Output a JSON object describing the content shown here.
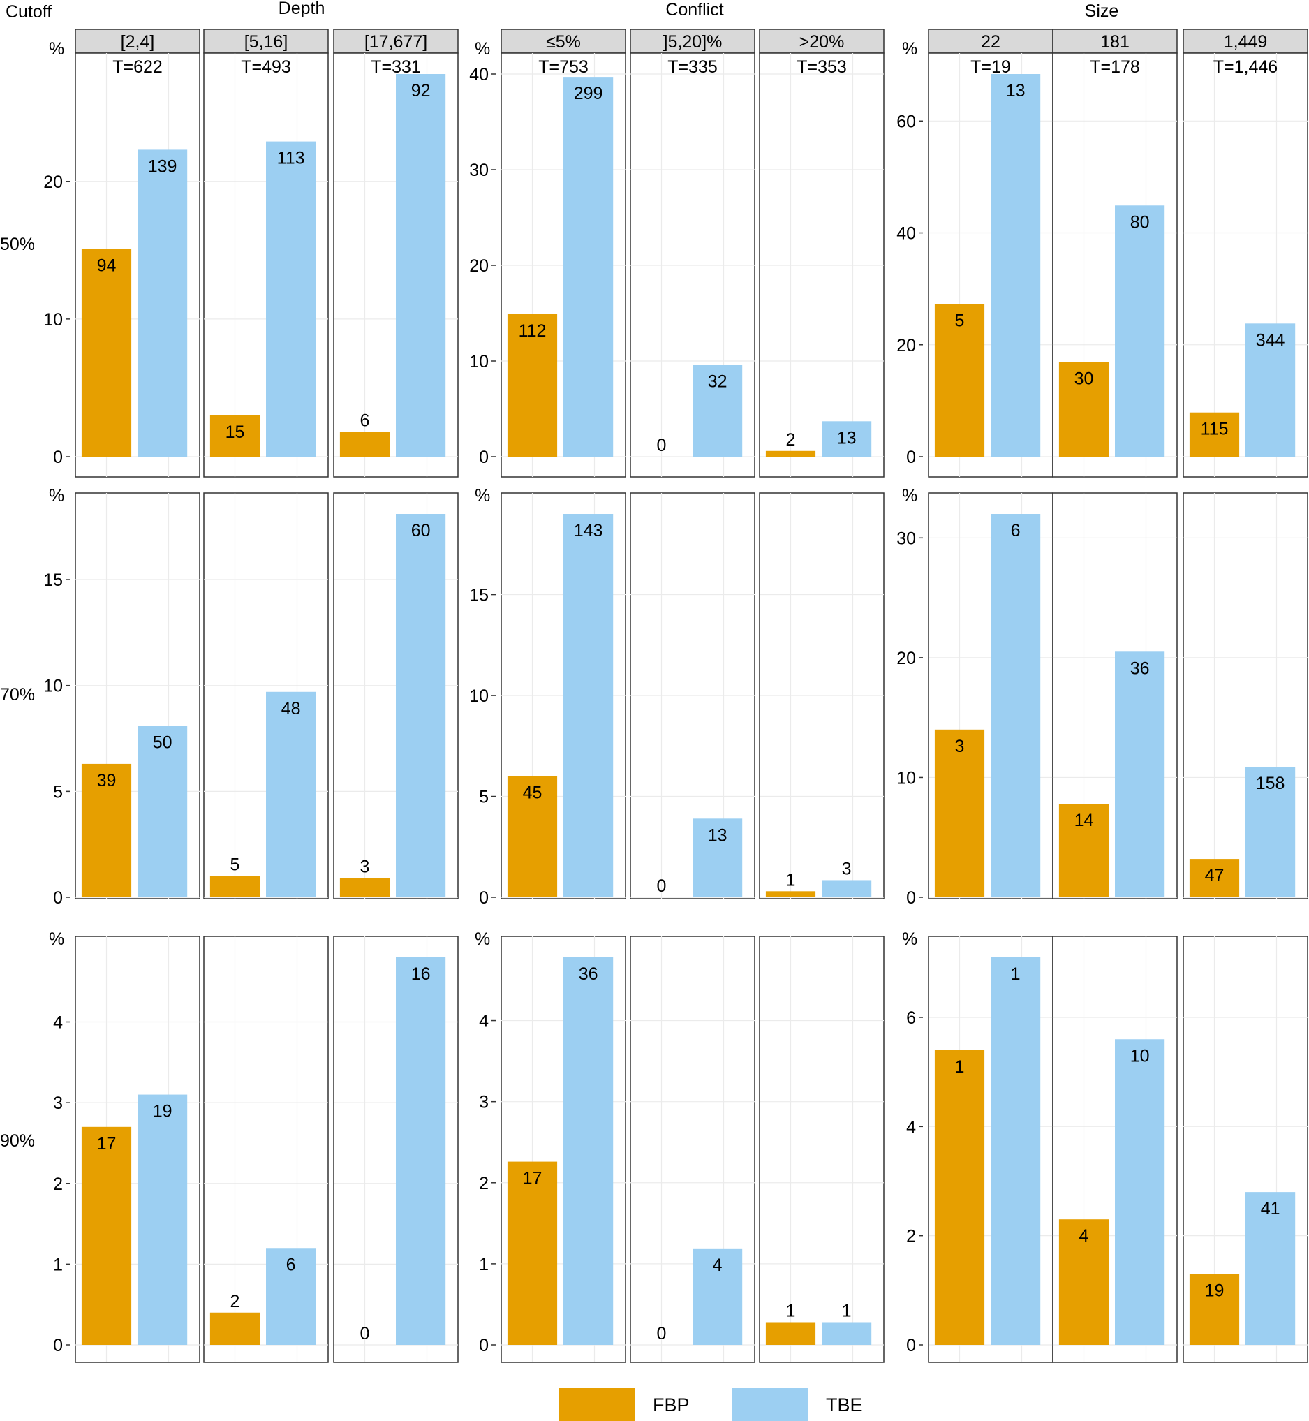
{
  "labels": {
    "cutoff": "Cutoff",
    "depth": "Depth",
    "conflict": "Conflict",
    "size": "Size",
    "percent": "%"
  },
  "legend": [
    {
      "name": "FBP",
      "color": "#E69F00"
    },
    {
      "name": "TBE",
      "color": "#9CCFF2"
    }
  ],
  "chart_data": {
    "type": "bar",
    "rows": [
      "50%",
      "70%",
      "90%"
    ],
    "series_names": [
      "FBP",
      "TBE"
    ],
    "groups": [
      {
        "title": "Depth",
        "panels": [
          "[2,4]",
          "[5,16]",
          "[17,677]"
        ],
        "totals": [
          "T=622",
          "T=493",
          "T=331"
        ],
        "ylim": [
          [
            0,
            27
          ],
          [
            0,
            17.5
          ],
          [
            0,
            4.8
          ]
        ],
        "ticks": [
          [
            0,
            10,
            20
          ],
          [
            0,
            5,
            10,
            15
          ],
          [
            0,
            1,
            2,
            3,
            4
          ]
        ],
        "values": [
          [
            [
              15.1,
              22.3
            ],
            [
              3.0,
              22.9
            ],
            [
              1.8,
              27.8
            ]
          ],
          [
            [
              6.3,
              8.1
            ],
            [
              1.0,
              9.7
            ],
            [
              0.9,
              18.1
            ]
          ],
          [
            [
              2.7,
              3.1
            ],
            [
              0.4,
              1.2
            ],
            [
              0,
              4.8
            ]
          ]
        ],
        "counts": [
          [
            [
              94,
              139
            ],
            [
              15,
              113
            ],
            [
              6,
              92
            ]
          ],
          [
            [
              39,
              50
            ],
            [
              5,
              48
            ],
            [
              3,
              60
            ]
          ],
          [
            [
              17,
              19
            ],
            [
              2,
              6
            ],
            [
              0,
              16
            ]
          ]
        ]
      },
      {
        "title": "Conflict",
        "panels": [
          "≤5%",
          "]5,20]%",
          ">20%"
        ],
        "totals": [
          "T=753",
          "T=335",
          "T=353"
        ],
        "ylim": [
          [
            0,
            39.7
          ],
          [
            0,
            19
          ],
          [
            0,
            4.8
          ]
        ],
        "ticks": [
          [
            0,
            10,
            20,
            30,
            40
          ],
          [
            0,
            5,
            10,
            15
          ],
          [
            0,
            1,
            2,
            3,
            4
          ]
        ],
        "values": [
          [
            [
              14.9,
              39.7
            ],
            [
              0,
              9.6
            ],
            [
              0.6,
              3.7
            ]
          ],
          [
            [
              6.0,
              19.0
            ],
            [
              0,
              3.9
            ],
            [
              0.3,
              0.85
            ]
          ],
          [
            [
              2.26,
              4.78
            ],
            [
              0,
              1.19
            ],
            [
              0.28,
              0.28
            ]
          ]
        ],
        "counts": [
          [
            [
              112,
              299
            ],
            [
              0,
              32
            ],
            [
              2,
              13
            ]
          ],
          [
            [
              45,
              143
            ],
            [
              0,
              13
            ],
            [
              1,
              3
            ]
          ],
          [
            [
              17,
              36
            ],
            [
              0,
              4
            ],
            [
              1,
              1
            ]
          ]
        ]
      },
      {
        "title": "Size",
        "panels": [
          "22",
          "181",
          "1,449"
        ],
        "totals": [
          "T=19",
          "T=178",
          "T=1,446"
        ],
        "ylim": [
          [
            0,
            68.4
          ],
          [
            0,
            32
          ],
          [
            0,
            7.1
          ]
        ],
        "ticks": [
          [
            0,
            20,
            40,
            60
          ],
          [
            0,
            10,
            20,
            30
          ],
          [
            0,
            2,
            4,
            6
          ]
        ],
        "values": [
          [
            [
              27.3,
              68.4
            ],
            [
              16.9,
              44.9
            ],
            [
              7.9,
              23.8
            ]
          ],
          [
            [
              14.0,
              32.0
            ],
            [
              7.8,
              20.5
            ],
            [
              3.2,
              10.9
            ]
          ],
          [
            [
              5.4,
              7.1
            ],
            [
              2.3,
              5.6
            ],
            [
              1.3,
              2.8
            ]
          ]
        ],
        "counts": [
          [
            [
              5,
              13
            ],
            [
              30,
              80
            ],
            [
              115,
              344
            ]
          ],
          [
            [
              3,
              6
            ],
            [
              14,
              36
            ],
            [
              47,
              158
            ]
          ],
          [
            [
              1,
              1
            ],
            [
              4,
              10
            ],
            [
              19,
              41
            ]
          ]
        ]
      }
    ]
  }
}
